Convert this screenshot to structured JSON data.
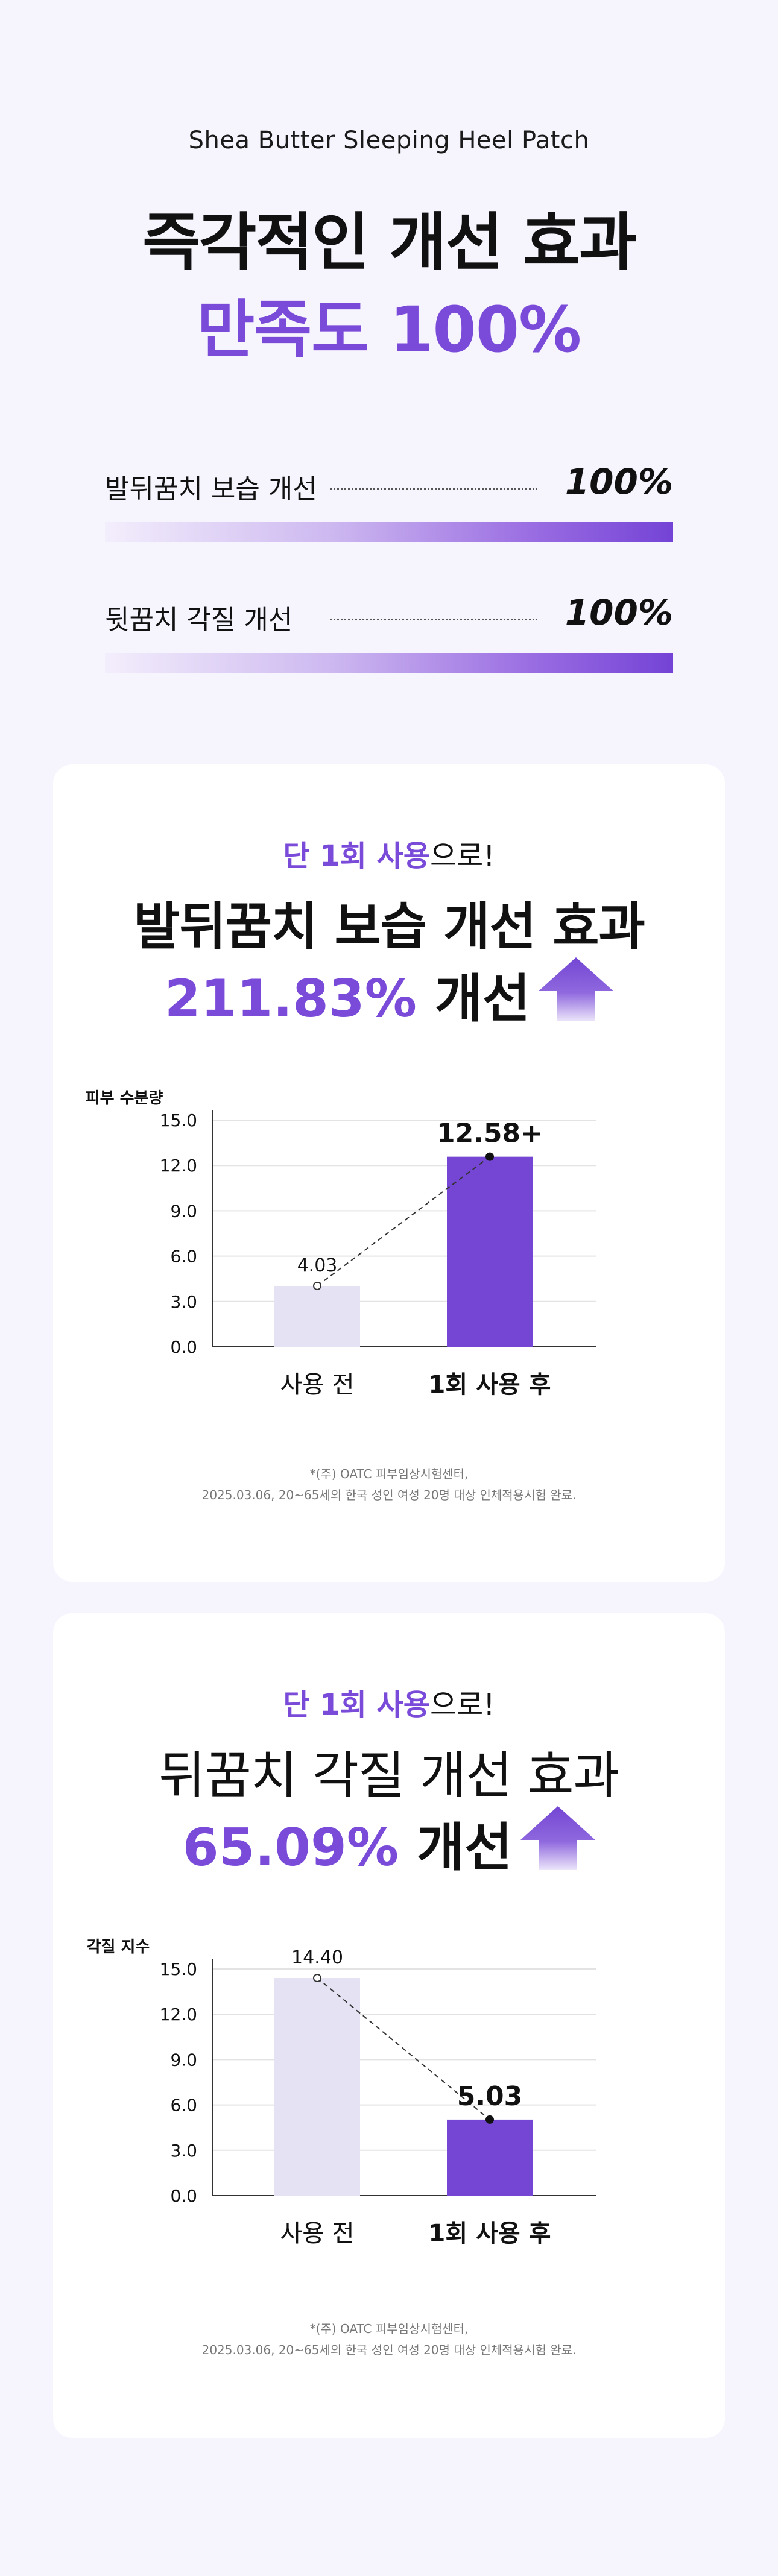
{
  "header": {
    "product_name": "Shea Butter Sleeping Heel Patch",
    "headline_line1": "즉각적인 개선 효과",
    "headline_line2": "만족도 100%"
  },
  "satisfaction": [
    {
      "label": "발뒤꿈치 보습 개선",
      "value": "100%",
      "fill_percent": 100
    },
    {
      "label": "뒷꿈치 각질 개선",
      "value": "100%",
      "fill_percent": 100
    }
  ],
  "colors": {
    "accent": "#7a4ad9",
    "bar_before": "#e5e2f3",
    "bar_after": "#7446d3",
    "background": "#f6f4fd"
  },
  "cards": [
    {
      "eyebrow_highlight": "단 1회 사용",
      "eyebrow_rest": "으로!",
      "title": "발뒤꿈치 보습 개선 효과",
      "improvement_value": "211.83%",
      "improvement_word": "개선",
      "icon": "up-arrow-icon",
      "footnote_line1": "*(주) OATC 피부임상시험센터,",
      "footnote_line2": "2025.03.06, 20~65세의 한국 성인 여성 20명 대상 인체적용시험 완료."
    },
    {
      "eyebrow_highlight": "단 1회 사용",
      "eyebrow_rest": "으로!",
      "title": "뒤꿈치 각질 개선 효과",
      "improvement_value": "65.09%",
      "improvement_word": "개선",
      "icon": "up-arrow-icon",
      "footnote_line1": "*(주) OATC 피부임상시험센터,",
      "footnote_line2": "2025.03.06, 20~65세의 한국 성인 여성 20명 대상 인체적용시험 완료."
    }
  ],
  "chart_data": [
    {
      "type": "bar",
      "ylabel": "피부 수분량",
      "categories": [
        "사용 전",
        "1회 사용 후"
      ],
      "values": [
        4.03,
        12.58
      ],
      "value_labels": [
        "4.03",
        "12.58+"
      ],
      "yticks": [
        "0.0",
        "3.0",
        "6.0",
        "9.0",
        "12.0",
        "15.0"
      ],
      "ylim": [
        0,
        15
      ],
      "grid": true,
      "connector": "dashed"
    },
    {
      "type": "bar",
      "ylabel": "각질 지수",
      "categories": [
        "사용 전",
        "1회 사용 후"
      ],
      "values": [
        14.4,
        5.03
      ],
      "value_labels": [
        "14.40",
        "5.03"
      ],
      "yticks": [
        "0.0",
        "3.0",
        "6.0",
        "9.0",
        "12.0",
        "15.0"
      ],
      "ylim": [
        0,
        15
      ],
      "grid": true,
      "connector": "dashed"
    }
  ]
}
